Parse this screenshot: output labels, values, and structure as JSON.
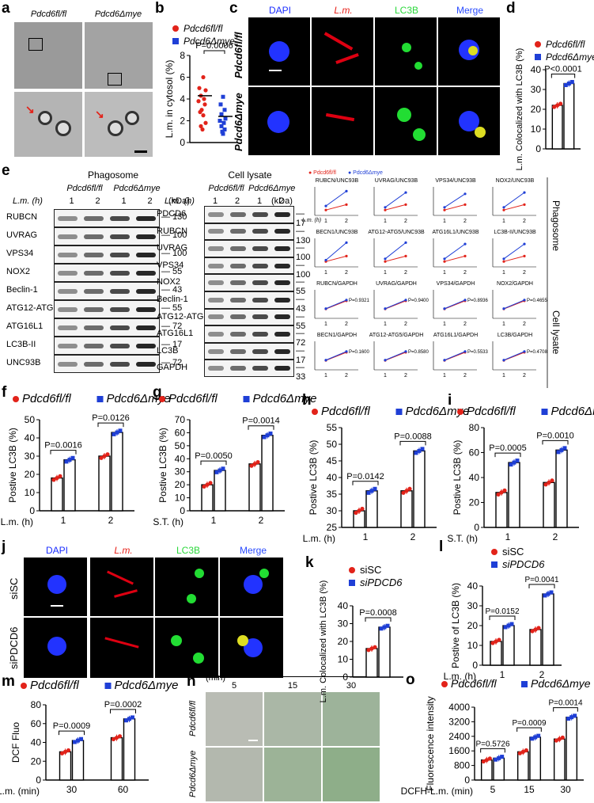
{
  "panel_labels": {
    "a": "a",
    "b": "b",
    "c": "c",
    "d": "d",
    "e": "e",
    "f": "f",
    "g": "g",
    "h": "h",
    "i": "i",
    "j": "j",
    "k": "k",
    "l": "l",
    "m": "m",
    "n": "n",
    "o": "o"
  },
  "genotypes": {
    "wt": "Pdcd6fl/fl",
    "ko": "Pdcd6Δmye",
    "sisc": "siSC",
    "sipd": "siPDCD6"
  },
  "panel_a": {
    "col1": "Pdcd6fl/fl",
    "col2": "Pdcd6Δmye"
  },
  "panel_c": {
    "ch": [
      "DAPI",
      "L.m.",
      "LC3B",
      "Merge"
    ],
    "row1": "Pdcd6fl/fl",
    "row2": "Pdcd6Δmye"
  },
  "panel_j": {
    "ch": [
      "DAPI",
      "L.m.",
      "LC3B",
      "Merge"
    ],
    "row1": "siSC",
    "row2": "siPDCD6"
  },
  "panel_n": {
    "unit": "(min)",
    "times": [
      "5",
      "15",
      "30"
    ],
    "row1": "Pdcd6fl/fl",
    "row2": "Pdcd6Δmye"
  },
  "panel_e": {
    "phagosome_title": "Phagosome",
    "lysate_title": "Cell lysate",
    "lm_label": "L.m. (h)",
    "kda": "(kDa)",
    "lanes": [
      "1",
      "2",
      "1",
      "2"
    ],
    "phagosome_rows": [
      {
        "name": "RUBCN",
        "kda": "130"
      },
      {
        "name": "UVRAG",
        "kda": "100"
      },
      {
        "name": "VPS34",
        "kda": "100"
      },
      {
        "name": "NOX2",
        "kda": "55"
      },
      {
        "name": "Beclin-1",
        "kda": "43"
      },
      {
        "name": "ATG12-ATG5",
        "kda": "55"
      },
      {
        "name": "ATG16L1",
        "kda": "72"
      },
      {
        "name": "LC3B-II",
        "kda": "17"
      },
      {
        "name": "UNC93B",
        "kda": "72"
      }
    ],
    "lysate_rows": [
      {
        "name": "PDCD6",
        "kda": "17"
      },
      {
        "name": "RUBCN",
        "kda": "130"
      },
      {
        "name": "UVRAG",
        "kda": "100"
      },
      {
        "name": "VPS34",
        "kda": "100"
      },
      {
        "name": "NOX2",
        "kda": "55"
      },
      {
        "name": "Beclin-1",
        "kda": "43"
      },
      {
        "name": "ATG12-ATG5",
        "kda": "55"
      },
      {
        "name": "ATG16L1",
        "kda": "72"
      },
      {
        "name": "LC3B",
        "kda": "17"
      },
      {
        "name": "GAPDH",
        "kda": "33"
      }
    ],
    "side_phagosome": "Phagosome",
    "side_lysate": "Cell lysate",
    "mini_titles": [
      "RUBCN/UNC93B",
      "UVRAG/UNC93B",
      "VPS34/UNC93B",
      "NOX2/UNC93B",
      "BECN1/UNC93B",
      "ATG12-ATG5/UNC93B",
      "ATG16L1/UNC93B",
      "LC3B-II/UNC93B",
      "RUBCN/GAPDH",
      "UVRAG/GAPDH",
      "VPS34/GAPDH",
      "NOX2/GAPDH",
      "BECN1/GAPDH",
      "ATG12-ATG5/GAPDH",
      "ATG16L1/GAPDH",
      "LC3B/GAPDH"
    ],
    "mini_pvals_lysate": [
      "P=0.9321",
      "P=0.9400",
      "P=0.8936",
      "P=0.4655",
      "P=0.1600",
      "P=0.8580",
      "P=0.5533",
      "P=0.4708"
    ]
  },
  "chart_data": [
    {
      "panel": "b",
      "type": "scatter",
      "ylabel": "L.m. in cytosol (%)",
      "ylim": [
        0,
        8
      ],
      "yticks": [
        0,
        2,
        4,
        6,
        8
      ],
      "categories": [
        "Pdcd6fl/fl",
        "Pdcd6Δmye"
      ],
      "pvalues": [
        "P=0.0006"
      ],
      "series": [
        {
          "name": "Pdcd6fl/fl",
          "mean": 4.3
        },
        {
          "name": "Pdcd6Δmye",
          "mean": 2.4
        }
      ]
    },
    {
      "panel": "d",
      "type": "bar",
      "ylabel": "L.m. Colocalized with LC3B (%)",
      "ylim": [
        0,
        40
      ],
      "yticks": [
        0,
        10,
        20,
        30,
        40
      ],
      "pvalues": [
        "P<0.0001"
      ],
      "series": [
        {
          "name": "Pdcd6fl/fl",
          "values": [
            22
          ]
        },
        {
          "name": "Pdcd6Δmye",
          "values": [
            33
          ]
        }
      ]
    },
    {
      "panel": "f",
      "type": "bar",
      "ylabel": "Postive LC3B (%)",
      "xlabel": "L.m. (h)",
      "categories": [
        "1",
        "2"
      ],
      "ylim": [
        0,
        50
      ],
      "yticks": [
        0,
        10,
        20,
        30,
        40,
        50
      ],
      "pvalues": [
        "P=0.0016",
        "P=0.0126"
      ],
      "series": [
        {
          "name": "Pdcd6fl/fl",
          "values": [
            18,
            30
          ]
        },
        {
          "name": "Pdcd6Δmye",
          "values": [
            28,
            43
          ]
        }
      ]
    },
    {
      "panel": "g",
      "type": "bar",
      "ylabel": "Postive LC3B (%)",
      "xlabel": "S.T. (h)",
      "categories": [
        "1",
        "2"
      ],
      "ylim": [
        0,
        70
      ],
      "yticks": [
        0,
        10,
        20,
        30,
        40,
        50,
        60,
        70
      ],
      "pvalues": [
        "P=0.0050",
        "P=0.0014"
      ],
      "series": [
        {
          "name": "Pdcd6fl/fl",
          "values": [
            20,
            36
          ]
        },
        {
          "name": "Pdcd6Δmye",
          "values": [
            31,
            58
          ]
        }
      ]
    },
    {
      "panel": "h",
      "type": "bar",
      "ylabel": "Postive LC3B (%)",
      "xlabel": "L.m. (h)",
      "categories": [
        "1",
        "2"
      ],
      "ylim": [
        25,
        55
      ],
      "yticks": [
        25,
        30,
        35,
        40,
        45,
        50,
        55
      ],
      "pvalues": [
        "P=0.0142",
        "P=0.0088"
      ],
      "series": [
        {
          "name": "Pdcd6fl/fl",
          "values": [
            30,
            36
          ]
        },
        {
          "name": "Pdcd6Δmye",
          "values": [
            36,
            48
          ]
        }
      ]
    },
    {
      "panel": "i",
      "type": "bar",
      "ylabel": "Postive LC3B (%)",
      "xlabel": "S.T. (h)",
      "categories": [
        "1",
        "2"
      ],
      "ylim": [
        0,
        80
      ],
      "yticks": [
        0,
        20,
        40,
        60,
        80
      ],
      "pvalues": [
        "P=0.0005",
        "P=0.0010"
      ],
      "series": [
        {
          "name": "Pdcd6fl/fl",
          "values": [
            28,
            36
          ]
        },
        {
          "name": "Pdcd6Δmye",
          "values": [
            52,
            62
          ]
        }
      ]
    },
    {
      "panel": "k",
      "type": "bar",
      "ylabel": "L.m. Colocalized with LC3B (%)",
      "ylim": [
        0,
        40
      ],
      "yticks": [
        0,
        10,
        20,
        30,
        40
      ],
      "pvalues": [
        "P=0.0008"
      ],
      "series": [
        {
          "name": "siSC",
          "values": [
            16
          ]
        },
        {
          "name": "siPDCD6",
          "values": [
            28
          ]
        }
      ]
    },
    {
      "panel": "l",
      "type": "bar",
      "ylabel": "Postive of LC3B (%)",
      "xlabel": "L.m. (h)",
      "categories": [
        "1",
        "2"
      ],
      "ylim": [
        0,
        40
      ],
      "yticks": [
        0,
        10,
        20,
        30,
        40
      ],
      "pvalues": [
        "P=0.0152",
        "P=0.0041"
      ],
      "series": [
        {
          "name": "siSC",
          "values": [
            12,
            18
          ]
        },
        {
          "name": "siPDCD6",
          "values": [
            20,
            36
          ]
        }
      ]
    },
    {
      "panel": "m",
      "type": "bar",
      "ylabel": "DCF Fluo",
      "xlabel": "L.m. (min)",
      "categories": [
        "30",
        "60"
      ],
      "ylim": [
        0,
        80
      ],
      "yticks": [
        0,
        20,
        40,
        60,
        80
      ],
      "pvalues": [
        "P=0.0009",
        "P=0.0002"
      ],
      "series": [
        {
          "name": "Pdcd6fl/fl",
          "values": [
            30,
            45
          ]
        },
        {
          "name": "Pdcd6Δmye",
          "values": [
            42,
            65
          ]
        }
      ]
    },
    {
      "panel": "o",
      "type": "bar",
      "ylabel": "Fluorescence intensity",
      "xlabel": "DCFH-L.m. (min)",
      "categories": [
        "5",
        "15",
        "30"
      ],
      "ylim": [
        0,
        4000
      ],
      "yticks": [
        0,
        800,
        1600,
        2400,
        3200,
        4000
      ],
      "pvalues": [
        "P=0.5726",
        "P=0.0009",
        "P=0.0014"
      ],
      "series": [
        {
          "name": "Pdcd6fl/fl",
          "values": [
            1100,
            1550,
            2250
          ]
        },
        {
          "name": "Pdcd6Δmye",
          "values": [
            1200,
            2350,
            3450
          ]
        }
      ]
    }
  ],
  "colors": {
    "red": "#e2231a",
    "blue": "#1f3fd6",
    "dapi": "#1a2cff",
    "lm": "#e8221b",
    "lc3b": "#2ad83a",
    "mergeText": "#2b4cff"
  }
}
